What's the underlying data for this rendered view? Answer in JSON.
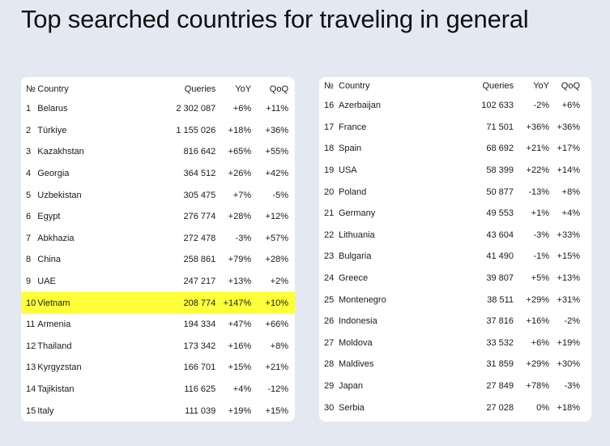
{
  "title": "Top searched countries for traveling in general",
  "headers": {
    "no": "№",
    "country": "Country",
    "queries": "Queries",
    "yoy": "YoY",
    "qoq": "QoQ"
  },
  "highlight_color": "#ffff3a",
  "left_table": [
    {
      "no": "1",
      "country": "Belarus",
      "queries": "2 302 087",
      "yoy": "+6%",
      "qoq": "+11%"
    },
    {
      "no": "2",
      "country": "Türkiye",
      "queries": "1 155 026",
      "yoy": "+18%",
      "qoq": "+36%"
    },
    {
      "no": "3",
      "country": "Kazakhstan",
      "queries": "816 642",
      "yoy": "+65%",
      "qoq": "+55%"
    },
    {
      "no": "4",
      "country": "Georgia",
      "queries": "364 512",
      "yoy": "+26%",
      "qoq": "+42%"
    },
    {
      "no": "5",
      "country": "Uzbekistan",
      "queries": "305 475",
      "yoy": "+7%",
      "qoq": "-5%"
    },
    {
      "no": "6",
      "country": "Egypt",
      "queries": "276 774",
      "yoy": "+28%",
      "qoq": "+12%"
    },
    {
      "no": "7",
      "country": "Abkhazia",
      "queries": "272 478",
      "yoy": "-3%",
      "qoq": "+57%"
    },
    {
      "no": "8",
      "country": "China",
      "queries": "258 861",
      "yoy": "+79%",
      "qoq": "+28%"
    },
    {
      "no": "9",
      "country": "UAE",
      "queries": "247 217",
      "yoy": "+13%",
      "qoq": "+2%"
    },
    {
      "no": "10",
      "country": "Vietnam",
      "queries": "208 774",
      "yoy": "+147%",
      "qoq": "+10%",
      "highlight": true
    },
    {
      "no": "11",
      "country": "Armenia",
      "queries": "194 334",
      "yoy": "+47%",
      "qoq": "+66%"
    },
    {
      "no": "12",
      "country": "Thailand",
      "queries": "173 342",
      "yoy": "+16%",
      "qoq": "+8%"
    },
    {
      "no": "13",
      "country": "Kyrgyzstan",
      "queries": "166 701",
      "yoy": "+15%",
      "qoq": "+21%"
    },
    {
      "no": "14",
      "country": "Tajikistan",
      "queries": "116 625",
      "yoy": "+4%",
      "qoq": "-12%"
    },
    {
      "no": "15",
      "country": "Italy",
      "queries": "111 039",
      "yoy": "+19%",
      "qoq": "+15%"
    }
  ],
  "right_table": [
    {
      "no": "16",
      "country": "Azerbaijan",
      "queries": "102 633",
      "yoy": "-2%",
      "qoq": "+6%"
    },
    {
      "no": "17",
      "country": "France",
      "queries": "71 501",
      "yoy": "+36%",
      "qoq": "+36%"
    },
    {
      "no": "18",
      "country": "Spain",
      "queries": "68 692",
      "yoy": "+21%",
      "qoq": "+17%"
    },
    {
      "no": "19",
      "country": "USA",
      "queries": "58 399",
      "yoy": "+22%",
      "qoq": "+14%"
    },
    {
      "no": "20",
      "country": "Poland",
      "queries": "50 877",
      "yoy": "-13%",
      "qoq": "+8%"
    },
    {
      "no": "21",
      "country": "Germany",
      "queries": "49 553",
      "yoy": "+1%",
      "qoq": "+4%"
    },
    {
      "no": "22",
      "country": "Lithuania",
      "queries": "43 604",
      "yoy": "-3%",
      "qoq": "+33%"
    },
    {
      "no": "23",
      "country": "Bulgaria",
      "queries": "41 490",
      "yoy": "-1%",
      "qoq": "+15%"
    },
    {
      "no": "24",
      "country": "Greece",
      "queries": "39 807",
      "yoy": "+5%",
      "qoq": "+13%"
    },
    {
      "no": "25",
      "country": "Montenegro",
      "queries": "38 511",
      "yoy": "+29%",
      "qoq": "+31%"
    },
    {
      "no": "26",
      "country": "Indonesia",
      "queries": "37 816",
      "yoy": "+16%",
      "qoq": "-2%"
    },
    {
      "no": "27",
      "country": "Moldova",
      "queries": "33 532",
      "yoy": "+6%",
      "qoq": "+19%"
    },
    {
      "no": "28",
      "country": "Maldives",
      "queries": "31 859",
      "yoy": "+29%",
      "qoq": "+30%"
    },
    {
      "no": "29",
      "country": "Japan",
      "queries": "27 849",
      "yoy": "+78%",
      "qoq": "-3%"
    },
    {
      "no": "30",
      "country": "Serbia",
      "queries": "27 028",
      "yoy": "0%",
      "qoq": "+18%"
    }
  ]
}
